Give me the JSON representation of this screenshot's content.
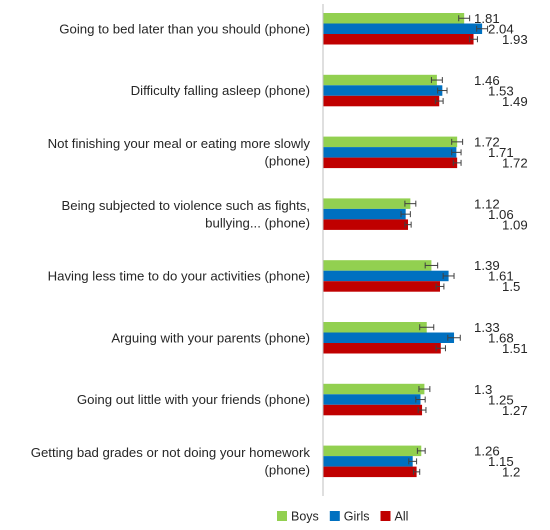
{
  "chart_data": {
    "type": "bar",
    "orientation": "horizontal",
    "categories": [
      [
        "Going to bed later than you should (phone)"
      ],
      [
        "Difficulty falling asleep (phone)"
      ],
      [
        "Not finishing your meal or eating more slowly",
        "(phone)"
      ],
      [
        "Being subjected to violence such as fights,",
        "bullying... (phone)"
      ],
      [
        "Having less time to do your activities (phone)"
      ],
      [
        "Arguing with your parents (phone)"
      ],
      [
        "Going out little with your friends (phone)"
      ],
      [
        "Getting bad grades or not doing your homework",
        "(phone)"
      ]
    ],
    "series": [
      {
        "name": "Boys",
        "color": "#92d050",
        "values": [
          1.81,
          1.46,
          1.72,
          1.12,
          1.39,
          1.33,
          1.3,
          1.26
        ],
        "labels": [
          "1.81",
          "1.46",
          "1.72",
          "1.12",
          "1.39",
          "1.33",
          "1.3",
          "1.26"
        ],
        "errors": [
          0.07,
          0.07,
          0.07,
          0.07,
          0.08,
          0.09,
          0.07,
          0.05
        ]
      },
      {
        "name": "Girls",
        "color": "#0070c0",
        "values": [
          2.04,
          1.53,
          1.71,
          1.06,
          1.61,
          1.68,
          1.25,
          1.15
        ],
        "labels": [
          "2.04",
          "1.53",
          "1.71",
          "1.06",
          "1.61",
          "1.68",
          "1.25",
          "1.15"
        ],
        "errors": [
          0.07,
          0.06,
          0.06,
          0.06,
          0.07,
          0.08,
          0.06,
          0.05
        ]
      },
      {
        "name": "All",
        "color": "#c00000",
        "values": [
          1.93,
          1.49,
          1.72,
          1.09,
          1.5,
          1.51,
          1.27,
          1.2
        ],
        "labels": [
          "1.93",
          "1.49",
          "1.72",
          "1.09",
          "1.5",
          "1.51",
          "1.27",
          "1.2"
        ],
        "errors": [
          0.05,
          0.05,
          0.05,
          0.04,
          0.05,
          0.06,
          0.05,
          0.04
        ]
      }
    ],
    "xlim": [
      0,
      2.5
    ],
    "grid": false,
    "legend_position": "bottom-center",
    "title": "",
    "xlabel": "",
    "ylabel": ""
  }
}
